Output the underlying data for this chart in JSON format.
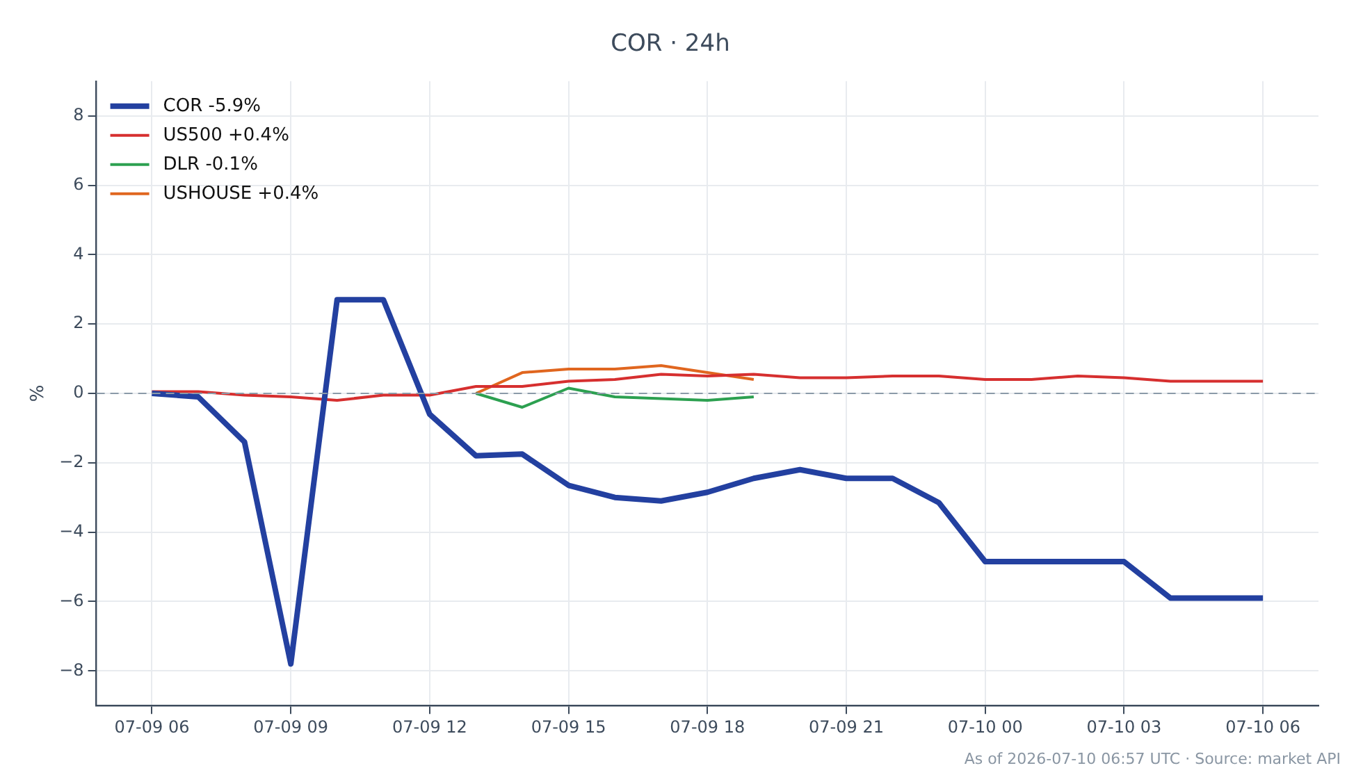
{
  "chart_data": {
    "type": "line",
    "title": "COR · 24h",
    "ylabel": "%",
    "annotations": [
      "As of 2026-07-10 06:57 UTC · Source: market API"
    ],
    "xlim": [
      "--07-09T04:48",
      "--07-10T07:12"
    ],
    "xticks": [
      {
        "value": "--07-09T06:00",
        "label": "07-09 06"
      },
      {
        "value": "--07-09T09:00",
        "label": "07-09 09"
      },
      {
        "value": "--07-09T12:00",
        "label": "07-09 12"
      },
      {
        "value": "--07-09T15:00",
        "label": "07-09 15"
      },
      {
        "value": "--07-09T18:00",
        "label": "07-09 18"
      },
      {
        "value": "--07-09T21:00",
        "label": "07-09 21"
      },
      {
        "value": "--07-10T00:00",
        "label": "07-10 00"
      },
      {
        "value": "--07-10T03:00",
        "label": "07-10 03"
      },
      {
        "value": "--07-10T06:00",
        "label": "07-10 06"
      }
    ],
    "ylim": [
      -9,
      9
    ],
    "yticks": [
      {
        "value": -8,
        "label": "−8"
      },
      {
        "value": -6,
        "label": "−6"
      },
      {
        "value": -4,
        "label": "−4"
      },
      {
        "value": -2,
        "label": "−2"
      },
      0,
      2,
      4,
      6,
      8
    ],
    "x": [
      "--07-09T06:00",
      "--07-09T07:00",
      "--07-09T08:00",
      "--07-09T09:00",
      "--07-09T10:00",
      "--07-09T11:00",
      "--07-09T12:00",
      "--07-09T13:00",
      "--07-09T14:00",
      "--07-09T15:00",
      "--07-09T16:00",
      "--07-09T17:00",
      "--07-09T18:00",
      "--07-09T19:00",
      "--07-09T20:00",
      "--07-09T21:00",
      "--07-09T22:00",
      "--07-09T23:00",
      "--07-10T00:00",
      "--07-10T01:00",
      "--07-10T02:00",
      "--07-10T03:00",
      "--07-10T04:00",
      "--07-10T05:00",
      "--07-10T06:00"
    ],
    "series": [
      {
        "name": "COR -5.9%",
        "color": "#2340a0",
        "values": [
          0,
          -0.1,
          -1.4,
          -7.8,
          2.7,
          2.7,
          -0.6,
          -1.8,
          -1.75,
          -2.65,
          -3.0,
          -3.1,
          -2.85,
          -2.45,
          -2.2,
          -2.45,
          -2.45,
          -3.15,
          -4.85,
          -4.85,
          -4.85,
          -4.85,
          -5.9,
          -5.9,
          -5.9
        ]
      },
      {
        "name": "US500 +0.4%",
        "color": "#d62f2f",
        "values": [
          0.05,
          0.05,
          -0.05,
          -0.1,
          -0.2,
          -0.05,
          -0.05,
          0.2,
          0.2,
          0.35,
          0.4,
          0.55,
          0.5,
          0.55,
          0.45,
          0.45,
          0.5,
          0.5,
          0.4,
          0.4,
          0.5,
          0.45,
          0.35,
          0.35,
          0.35
        ]
      },
      {
        "name": "DLR -0.1%",
        "color": "#2ca050",
        "x": [
          "--07-09T13:00",
          "--07-09T14:00",
          "--07-09T15:00",
          "--07-09T16:00",
          "--07-09T17:00",
          "--07-09T18:00",
          "--07-09T19:00"
        ],
        "values": [
          0,
          -0.4,
          0.15,
          -0.1,
          -0.15,
          -0.2,
          -0.1
        ]
      },
      {
        "name": "USHOUSE +0.4%",
        "color": "#e0661f",
        "x": [
          "--07-09T13:00",
          "--07-09T14:00",
          "--07-09T15:00",
          "--07-09T16:00",
          "--07-09T17:00",
          "--07-09T18:00",
          "--07-09T19:00"
        ],
        "values": [
          0,
          0.6,
          0.7,
          0.7,
          0.8,
          0.6,
          0.4
        ]
      }
    ],
    "ref_lines": [
      {
        "axis": "y",
        "value": 0,
        "color": "#8a9aa8",
        "line_style": "dashed"
      }
    ],
    "grid": true,
    "legend": "top left",
    "marker": "none",
    "line_style": "solid"
  }
}
